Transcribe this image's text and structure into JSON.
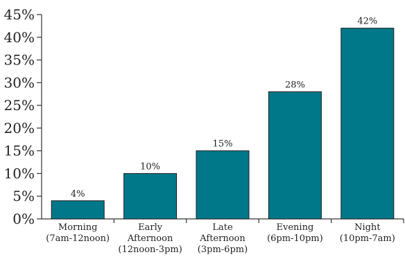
{
  "chart_data": {
    "type": "bar",
    "title": "",
    "xlabel": "",
    "ylabel": "",
    "categories": [
      [
        "Morning",
        "(7am-12noon)"
      ],
      [
        "Early",
        "Afternoon",
        "(12noon-3pm)"
      ],
      [
        "Late",
        "Afternoon",
        "(3pm-6pm)"
      ],
      [
        "Evening",
        "(6pm-10pm)"
      ],
      [
        "Night",
        "(10pm-7am)"
      ]
    ],
    "values": [
      4,
      10,
      15,
      28,
      42
    ],
    "data_labels": [
      "4%",
      "10%",
      "15%",
      "28%",
      "42%"
    ],
    "ylim": [
      0,
      45
    ],
    "yticks": [
      0,
      5,
      10,
      15,
      20,
      25,
      30,
      35,
      40,
      45
    ],
    "ytick_labels": [
      "0%",
      "5%",
      "10%",
      "15%",
      "20%",
      "25%",
      "30%",
      "35%",
      "40%",
      "45%"
    ],
    "grid": false,
    "legend": "none",
    "bar_color": "#00788a"
  }
}
